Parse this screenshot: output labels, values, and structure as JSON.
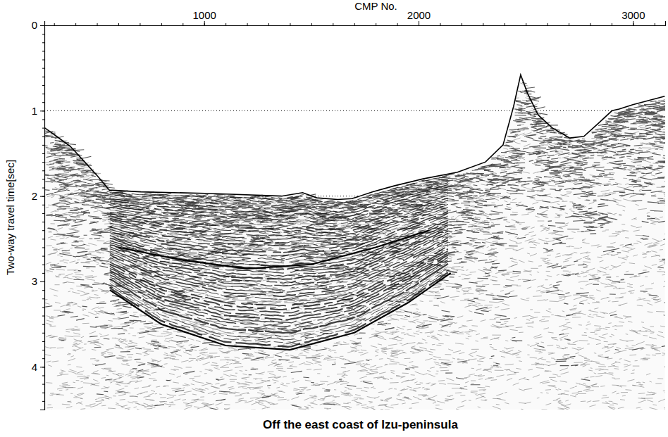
{
  "chart_data": {
    "type": "seismic",
    "title": "Off the east coast of Izu-peninsula",
    "x_label": "CMP No.",
    "y_label": "Two-way travel time[sec]",
    "xlim": [
      255,
      3150
    ],
    "xticks": [
      1000,
      2000,
      3000
    ],
    "ylim": [
      0,
      4.5
    ],
    "yticks": [
      0,
      1,
      2,
      3,
      4
    ],
    "grid": true,
    "series": [
      {
        "color": "#000000",
        "x": [
          256,
          312,
          377,
          443,
          508,
          558,
          705,
          1033,
          1361,
          1459,
          1525,
          1623,
          1689,
          1787,
          1886,
          2017,
          2181,
          2312,
          2394,
          2443,
          2476,
          2509,
          2558,
          2623,
          2705,
          2771,
          2837,
          2902,
          2935,
          2999,
          3148
        ],
        "values": [
          1.2,
          1.3,
          1.42,
          1.6,
          1.78,
          1.93,
          1.95,
          1.97,
          2.0,
          1.96,
          2.02,
          2.04,
          2.03,
          1.95,
          1.88,
          1.8,
          1.72,
          1.6,
          1.4,
          0.95,
          0.58,
          0.8,
          1.05,
          1.2,
          1.32,
          1.3,
          1.15,
          1.0,
          0.98,
          0.93,
          0.83
        ]
      },
      {
        "color": "#000000",
        "x": [
          560,
          800,
          1100,
          1400,
          1700,
          1950,
          2150
        ],
        "values": [
          3.1,
          3.5,
          3.75,
          3.8,
          3.6,
          3.25,
          2.9
        ]
      },
      {
        "color": "#000000",
        "x": [
          600,
          900,
          1200,
          1500,
          1800,
          2050
        ],
        "values": [
          2.6,
          2.75,
          2.85,
          2.8,
          2.6,
          2.4
        ]
      }
    ]
  }
}
